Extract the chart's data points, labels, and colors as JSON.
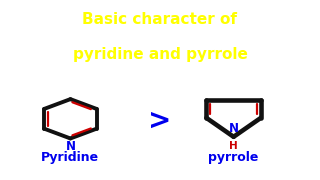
{
  "title_line1": "Basic character of",
  "title_line2": "pyridine and pyrrole",
  "title_color": "#FFFF00",
  "title_bg": "#111111",
  "bg_color": "#FFFFFF",
  "gt_symbol": ">",
  "gt_color": "#0000EE",
  "label_pyridine": "Pyridine",
  "label_pyrrole": "pyrrole",
  "label_color": "#0000EE",
  "label_h_color": "#CC0000",
  "bond_black": "#111111",
  "bond_red": "#CC0000",
  "n_color": "#0000EE",
  "title_fontsize": 11,
  "label_fontsize": 9
}
